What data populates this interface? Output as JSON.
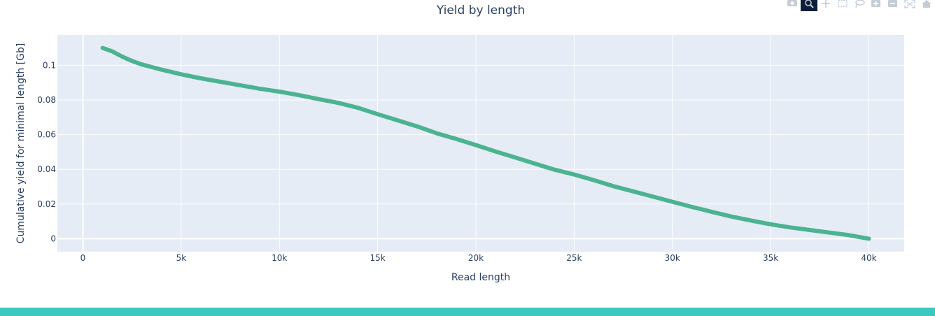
{
  "colors": {
    "plot_bg": "#e5ecf6",
    "grid": "#ffffff",
    "line": "#4cb391",
    "text": "#2a3f5f",
    "footer": "#3cc8c0",
    "modebar_icon": "#c5ccd6",
    "modebar_active_bg": "#0b1f3a"
  },
  "modebar": {
    "buttons": [
      {
        "name": "camera-icon",
        "active": false
      },
      {
        "name": "zoom-icon",
        "active": true
      },
      {
        "name": "pan-icon",
        "active": false
      },
      {
        "name": "box-select-icon",
        "active": false
      },
      {
        "name": "lasso-select-icon",
        "active": false
      },
      {
        "name": "zoom-in-icon",
        "active": false
      },
      {
        "name": "zoom-out-icon",
        "active": false
      },
      {
        "name": "autoscale-icon",
        "active": false
      },
      {
        "name": "reset-axes-icon",
        "active": false
      }
    ]
  },
  "chart_data": {
    "type": "line",
    "title": "Yield by length",
    "xlabel": "Read length",
    "ylabel": "Cumulative yield for minimal length [Gb]",
    "xlim": [
      -1300,
      41800
    ],
    "ylim": [
      -0.0075,
      0.1175
    ],
    "xticks": [
      0,
      5000,
      10000,
      15000,
      20000,
      25000,
      30000,
      35000,
      40000
    ],
    "xtick_labels": [
      "0",
      "5k",
      "10k",
      "15k",
      "20k",
      "25k",
      "30k",
      "35k",
      "40k"
    ],
    "yticks": [
      0,
      0.02,
      0.04,
      0.06,
      0.08,
      0.1
    ],
    "ytick_labels": [
      "0",
      "0.02",
      "0.04",
      "0.06",
      "0.08",
      "0.1"
    ],
    "grid": true,
    "series": [
      {
        "x": [
          1000,
          1500,
          2000,
          2500,
          3000,
          4000,
          5000,
          6000,
          7000,
          8000,
          9000,
          10000,
          11000,
          12000,
          13000,
          14000,
          15000,
          16000,
          17000,
          18000,
          19000,
          20000,
          21000,
          22000,
          23000,
          24000,
          25000,
          26000,
          27000,
          28000,
          29000,
          30000,
          31000,
          32000,
          33000,
          34000,
          35000,
          36000,
          37000,
          38000,
          39000,
          40000
        ],
        "y": [
          0.11,
          0.108,
          0.105,
          0.1025,
          0.1005,
          0.0975,
          0.0948,
          0.0925,
          0.0905,
          0.0885,
          0.0865,
          0.0848,
          0.0828,
          0.0805,
          0.0783,
          0.0755,
          0.0718,
          0.0683,
          0.0648,
          0.0608,
          0.0575,
          0.054,
          0.0503,
          0.0468,
          0.0433,
          0.0398,
          0.037,
          0.0338,
          0.0303,
          0.0273,
          0.0243,
          0.0213,
          0.0183,
          0.0155,
          0.0128,
          0.0105,
          0.0083,
          0.0065,
          0.005,
          0.0035,
          0.002,
          0.0
        ]
      }
    ]
  }
}
